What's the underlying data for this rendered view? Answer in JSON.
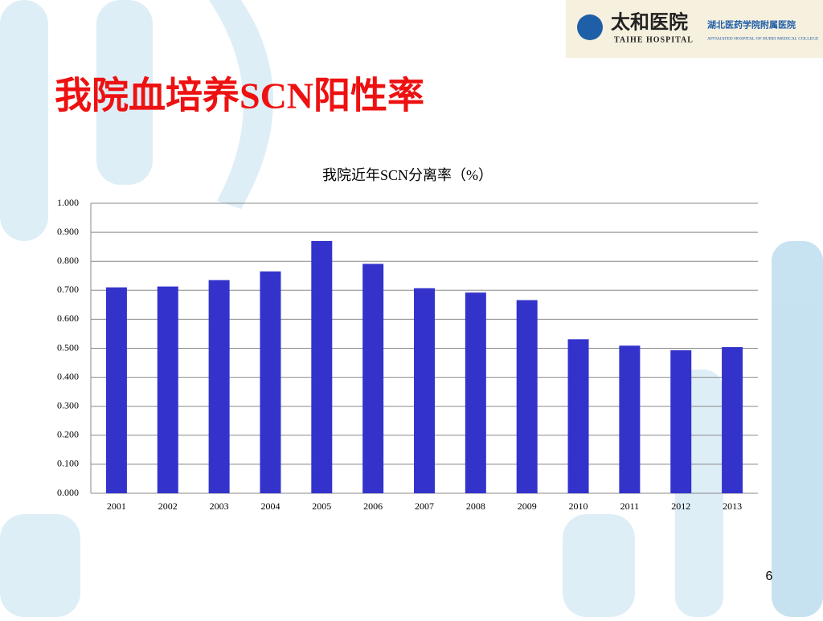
{
  "slide_title": "我院血培养SCN阳性率",
  "logo": {
    "name": "太和医院",
    "english": "TAIHE HOSPITAL",
    "affiliation": "湖北医药学院附属医院",
    "affiliation_english": "AFFIAIATED HOSPITAL OF HUBEI MEDICAL COLLEGE"
  },
  "page_number": "6",
  "chart_data": {
    "type": "bar",
    "title": "我院近年SCN分离率（%）",
    "categories": [
      "2001",
      "2002",
      "2003",
      "2004",
      "2005",
      "2006",
      "2007",
      "2008",
      "2009",
      "2010",
      "2011",
      "2012",
      "2013"
    ],
    "values": [
      0.71,
      0.713,
      0.735,
      0.765,
      0.87,
      0.791,
      0.707,
      0.692,
      0.666,
      0.531,
      0.509,
      0.493,
      0.504
    ],
    "color": "#3333cc",
    "ylim": [
      0,
      1
    ],
    "yticks": [
      {
        "value": 0,
        "label": "0.000"
      },
      {
        "value": 0.1,
        "label": "0.100"
      },
      {
        "value": 0.2,
        "label": "0.200"
      },
      {
        "value": 0.3,
        "label": "0.300"
      },
      {
        "value": 0.4,
        "label": "0.400"
      },
      {
        "value": 0.5,
        "label": "0.500"
      },
      {
        "value": 0.6,
        "label": "0.600"
      },
      {
        "value": 0.7,
        "label": "0.700"
      },
      {
        "value": 0.8,
        "label": "0.800"
      },
      {
        "value": 0.9,
        "label": "0.900"
      },
      {
        "value": 1,
        "label": "1.000"
      }
    ],
    "grid": true
  }
}
